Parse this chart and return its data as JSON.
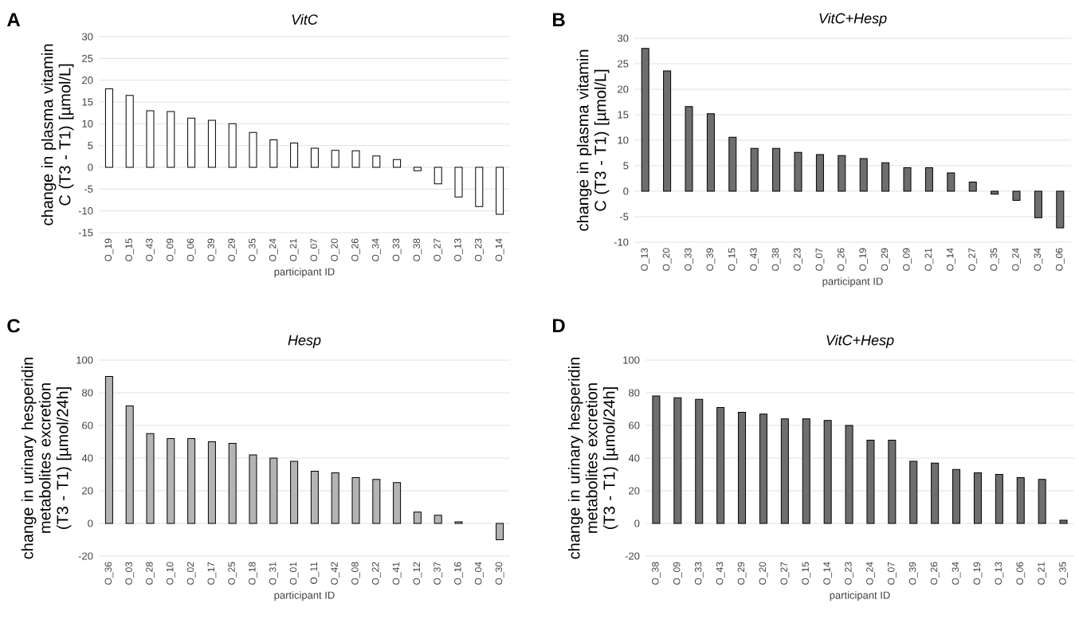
{
  "chart_data": [
    {
      "type": "bar",
      "title": "VitC",
      "annotations": [
        "A"
      ],
      "ylabel": "change in plasma vitamin C (T3 - T1) [µmol/L]",
      "xlabel": "participant ID",
      "grid": "y",
      "color": "#ffffff",
      "categories": [
        "O_19",
        "O_15",
        "O_43",
        "O_09",
        "O_06",
        "O_39",
        "O_29",
        "O_35",
        "O_24",
        "O_21",
        "O_07",
        "O_20",
        "O_26",
        "O_34",
        "O_33",
        "O_38",
        "O_27",
        "O_13",
        "O_23",
        "O_14"
      ],
      "values": [
        18,
        16.5,
        13,
        12.8,
        11.3,
        10.8,
        10,
        8,
        6.3,
        5.6,
        4.4,
        3.9,
        3.8,
        2.6,
        1.8,
        -0.8,
        -3.8,
        -6.8,
        -9,
        -10.8
      ],
      "ylim": [
        -15,
        30
      ],
      "yticks": [
        -15,
        -10,
        -5,
        0,
        5,
        10,
        15,
        20,
        25,
        30
      ]
    },
    {
      "type": "bar",
      "title": "VitC+Hesp",
      "annotations": [
        "B"
      ],
      "ylabel": "change in plasma vitamin C (T3 - T1) [µmol/L]",
      "xlabel": "participant ID",
      "grid": "y",
      "color": "#6e6e6e",
      "categories": [
        "O_13",
        "O_20",
        "O_33",
        "O_39",
        "O_15",
        "O_43",
        "O_38",
        "O_23",
        "O_07",
        "O_26",
        "O_19",
        "O_29",
        "O_09",
        "O_21",
        "O_14",
        "O_27",
        "O_35",
        "O_24",
        "O_34",
        "O_06"
      ],
      "values": [
        28,
        23.6,
        16.6,
        15.2,
        10.6,
        8.4,
        8.4,
        7.6,
        7.2,
        7,
        6.4,
        5.6,
        4.6,
        4.6,
        3.6,
        1.8,
        -0.6,
        -1.8,
        -5.2,
        -7.2
      ],
      "ylim": [
        -10,
        30
      ],
      "yticks": [
        -10,
        -5,
        0,
        5,
        10,
        15,
        20,
        25,
        30
      ]
    },
    {
      "type": "bar",
      "title": "Hesp",
      "annotations": [
        "C"
      ],
      "ylabel": "change in urinary hesperidin metabolites excretion (T3 - T1) [µmol/24h]",
      "xlabel": "participant ID",
      "grid": "y",
      "color": "#b4b4b4",
      "categories": [
        "O_36",
        "O_03",
        "O_28",
        "O_10",
        "O_02",
        "O_17",
        "O_25",
        "O_18",
        "O_31",
        "O_01",
        "O_11",
        "O_42",
        "O_08",
        "O_22",
        "O_41",
        "O_12",
        "O_37",
        "O_16",
        "O_04",
        "O_30"
      ],
      "values": [
        90,
        72,
        55,
        52,
        52,
        50,
        49,
        42,
        40,
        38,
        32,
        31,
        28,
        27,
        25,
        7,
        5,
        1,
        null,
        -10
      ],
      "ylim": [
        -20,
        100
      ],
      "yticks": [
        -20,
        0,
        20,
        40,
        60,
        80,
        100
      ]
    },
    {
      "type": "bar",
      "title": "VitC+Hesp",
      "annotations": [
        "D"
      ],
      "ylabel": "change in urinary hesperidin metabolites excretion (T3 - T1) [µmol/24h]",
      "xlabel": "participant ID",
      "grid": "y",
      "color": "#6e6e6e",
      "categories": [
        "O_38",
        "O_09",
        "O_33",
        "O_43",
        "O_29",
        "O_20",
        "O_27",
        "O_15",
        "O_14",
        "O_23",
        "O_24",
        "O_07",
        "O_39",
        "O_26",
        "O_34",
        "O_19",
        "O_13",
        "O_06",
        "O_21",
        "O_35"
      ],
      "values": [
        78,
        77,
        76,
        71,
        68,
        67,
        64,
        64,
        63,
        60,
        51,
        51,
        38,
        37,
        33,
        31,
        30,
        28,
        27,
        2
      ],
      "ylim": [
        -20,
        100
      ],
      "yticks": [
        -20,
        0,
        20,
        40,
        60,
        80,
        100
      ]
    }
  ]
}
